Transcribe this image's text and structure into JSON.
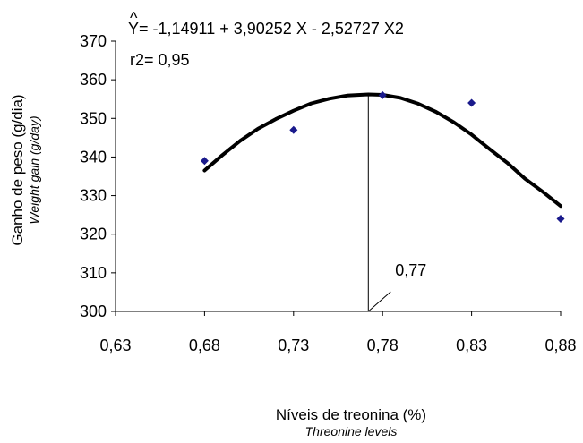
{
  "chart_data": {
    "type": "scatter",
    "xlabel": "Níveis de treonina (%)",
    "xlabel_sub": "Threonine levels",
    "ylabel": "Ganho de peso (g/dia)",
    "ylabel_sub": "Weight gain (g/day)",
    "xlim": [
      0.63,
      0.88
    ],
    "ylim": [
      300,
      370
    ],
    "x_ticks": [
      "0,63",
      "0,68",
      "0,73",
      "0,78",
      "0,83",
      "0,88"
    ],
    "x_tick_values": [
      0.63,
      0.68,
      0.73,
      0.78,
      0.83,
      0.88
    ],
    "y_ticks": [
      "300",
      "310",
      "320",
      "330",
      "340",
      "350",
      "360",
      "370"
    ],
    "y_tick_values": [
      300,
      310,
      320,
      330,
      340,
      350,
      360,
      370
    ],
    "points": [
      {
        "x": 0.68,
        "y": 339
      },
      {
        "x": 0.73,
        "y": 347
      },
      {
        "x": 0.78,
        "y": 356
      },
      {
        "x": 0.83,
        "y": 354
      },
      {
        "x": 0.88,
        "y": 324
      }
    ],
    "equation_hat": "^",
    "equation": "Y= -1,14911 + 3,90252 X - 2,52727 X2",
    "r2": "r2= 0,95",
    "optimum_label": "0,77",
    "optimum_x": 0.772,
    "optimum_y": 356,
    "fit_curve": {
      "x": [
        0.68,
        0.69,
        0.7,
        0.71,
        0.72,
        0.73,
        0.74,
        0.75,
        0.76,
        0.772,
        0.78,
        0.79,
        0.8,
        0.81,
        0.82,
        0.83,
        0.84,
        0.85,
        0.86,
        0.87,
        0.88
      ],
      "y": [
        336.5,
        340.5,
        344.2,
        347.3,
        349.8,
        352.0,
        353.9,
        355.1,
        355.9,
        356.2,
        356.1,
        355.3,
        353.8,
        351.7,
        349.0,
        345.8,
        342.1,
        338.5,
        334.4,
        331.0,
        327.3
      ]
    },
    "point_color": "#1a1a8c",
    "curve_color": "#000000"
  }
}
